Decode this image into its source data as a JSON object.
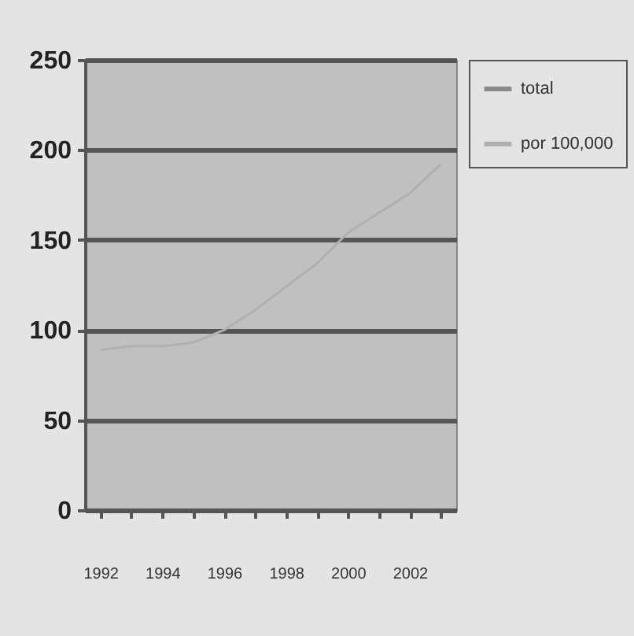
{
  "chart_data": {
    "type": "line",
    "categories": [
      "1992",
      null,
      "1994",
      null,
      "1996",
      null,
      "1998",
      null,
      "2000",
      null,
      "2002",
      null
    ],
    "series": [
      {
        "name": "total",
        "color": "#8a8a8a",
        "values": [
          null,
          null,
          null,
          null,
          null,
          null,
          null,
          null,
          null,
          null,
          null,
          null
        ]
      },
      {
        "name": "por 100,000",
        "color": "#b0b0b0",
        "values": [
          89,
          91,
          91,
          93,
          100,
          111,
          124,
          137,
          154,
          165,
          176,
          192
        ]
      }
    ],
    "ylim": [
      0,
      250
    ],
    "yticks": [
      0,
      50,
      100,
      150,
      200,
      250
    ],
    "grid": "y",
    "legend": "right",
    "line_style": "solid"
  }
}
